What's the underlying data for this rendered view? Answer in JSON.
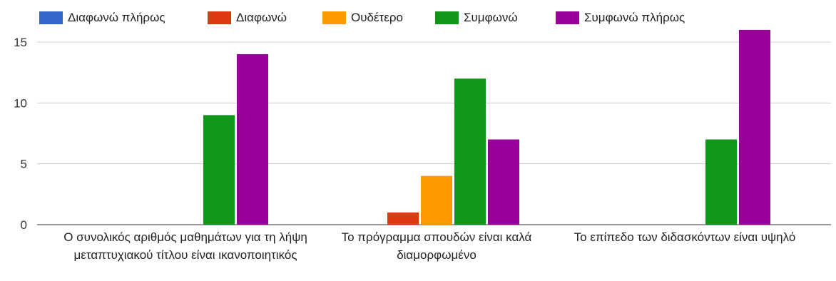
{
  "chart_data": {
    "type": "bar",
    "categories": [
      "Ο συνολικός αριθμός μαθημάτων για τη λήψη μεταπτυχιακού τίτλου είναι ικανοποιητικός",
      "Το πρόγραμμα σπουδών είναι καλά διαμορφωμένο",
      "Το επίπεδο των διδασκόντων είναι υψηλό"
    ],
    "series": [
      {
        "name": "Διαφωνώ πλήρως",
        "color": "#3366cc",
        "values": [
          0,
          0,
          0
        ]
      },
      {
        "name": "Διαφωνώ",
        "color": "#dc3912",
        "values": [
          0,
          1,
          0
        ]
      },
      {
        "name": "Ουδέτερο",
        "color": "#ff9900",
        "values": [
          0,
          4,
          0
        ]
      },
      {
        "name": "Συμφωνώ",
        "color": "#109618",
        "values": [
          9,
          12,
          7
        ]
      },
      {
        "name": "Συμφωνώ πλήρως",
        "color": "#990099",
        "values": [
          14,
          7,
          16
        ]
      }
    ],
    "yticks": [
      "0",
      "5",
      "10",
      "15"
    ],
    "ylim": [
      0,
      16
    ],
    "legend_position": "top",
    "grid": true
  }
}
